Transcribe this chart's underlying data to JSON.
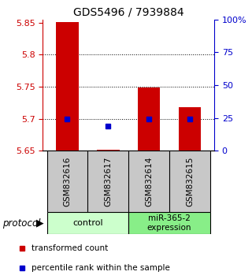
{
  "title": "GDS5496 / 7939884",
  "samples": [
    "GSM832616",
    "GSM832617",
    "GSM832614",
    "GSM832615"
  ],
  "bar_values": [
    5.851,
    5.652,
    5.749,
    5.718
  ],
  "blue_values": [
    5.7,
    5.688,
    5.7,
    5.7
  ],
  "ymin": 5.65,
  "ymax": 5.855,
  "yticks_left": [
    5.65,
    5.7,
    5.75,
    5.8,
    5.85
  ],
  "yticks_right_labels": [
    "0",
    "25",
    "50",
    "75",
    "100%"
  ],
  "yticks_right_pcts": [
    0,
    25,
    50,
    75,
    100
  ],
  "grid_lines": [
    5.8,
    5.75,
    5.7
  ],
  "bar_color": "#cc0000",
  "blue_color": "#0000cc",
  "bar_width": 0.55,
  "control_color": "#ccffcc",
  "mir_color": "#88ee88",
  "gray_color": "#c8c8c8",
  "x_positions": [
    0,
    1,
    2,
    3
  ]
}
